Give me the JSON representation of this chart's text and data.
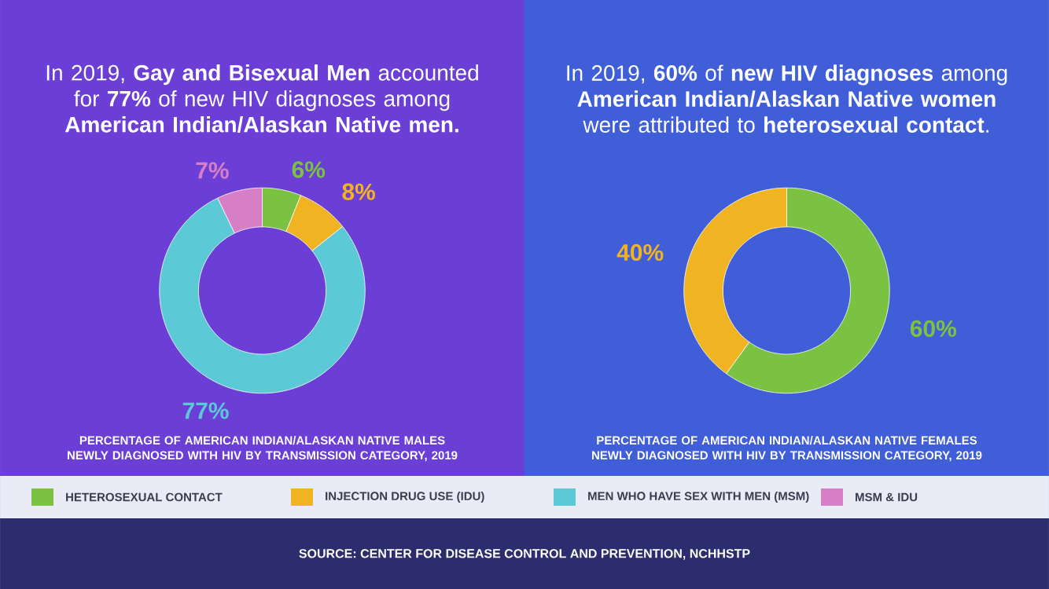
{
  "chart_data": [
    {
      "type": "donut",
      "title": "In 2019, **Gay and Bisexual Men** accounted for **77%** of new HIV diagnoses among **American Indian/Alaskan Native men.**",
      "categories": [
        "HETEROSEXUAL CONTACT",
        "INJECTION DRUG USE (IDU)",
        "MEN WHO HAVE SEX WITH MEN (MSM)",
        "MSM & IDU"
      ],
      "values": [
        6,
        8,
        77,
        7
      ],
      "value_labels": [
        "6%",
        "8%",
        "77%",
        "7%"
      ],
      "colors": [
        "#7cc242",
        "#f0b321",
        "#5bc9d6",
        "#d77fc6"
      ],
      "legend": "bottom",
      "annotations": [
        "PERCENTAGE OF AMERICAN INDIAN/ALASKAN NATIVE MALES NEWLY DIAGNOSED WITH HIV BY TRANSMISSION CATEGORY, 2019",
        "SOURCE: CENTER FOR DISEASE CONTROL AND PREVENTION, NCHHSTP"
      ]
    },
    {
      "type": "donut",
      "title": "In 2019, **60%** of **new HIV diagnoses** among **American Indian/Alaskan Native women** were attributed to **heterosexual contact**.",
      "categories": [
        null,
        null
      ],
      "values": [
        60,
        40
      ],
      "value_labels": [
        "60%",
        "40%"
      ],
      "colors": [
        "#7cc242",
        "#f0b321"
      ],
      "annotations": [
        "PERCENTAGE OF AMERICAN INDIAN/ALASKAN NATIVE FEMALES NEWLY DIAGNOSED WITH HIV BY TRANSMISSION CATEGORY, 2019"
      ]
    }
  ]
}
